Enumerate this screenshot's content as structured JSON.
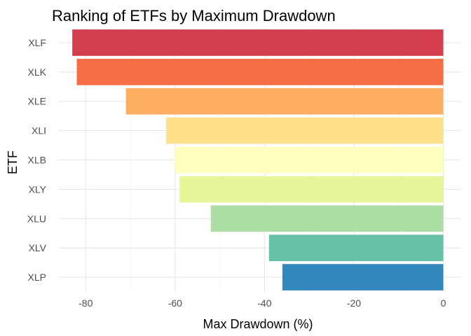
{
  "chart_data": {
    "type": "bar",
    "orientation": "horizontal",
    "title": "Ranking of ETFs by Maximum Drawdown",
    "xlabel": "Max Drawdown (%)",
    "ylabel": "ETF",
    "categories": [
      "XLF",
      "XLK",
      "XLE",
      "XLI",
      "XLB",
      "XLY",
      "XLU",
      "XLV",
      "XLP"
    ],
    "values": [
      -83,
      -82,
      -71,
      -62,
      -60,
      -59,
      -52,
      -39,
      -36
    ],
    "colors": [
      "#D53E4F",
      "#F46D43",
      "#FDAE61",
      "#FEE08B",
      "#FFFFBF",
      "#E6F598",
      "#ABDDA4",
      "#66C2A5",
      "#3288BD"
    ],
    "xlim": [
      -86,
      4
    ],
    "xticks": [
      -80,
      -60,
      -40,
      -20,
      0
    ],
    "xtick_labels": [
      "-80",
      "-60",
      "-40",
      "-20",
      "0"
    ],
    "grid": true,
    "legend": "none"
  }
}
